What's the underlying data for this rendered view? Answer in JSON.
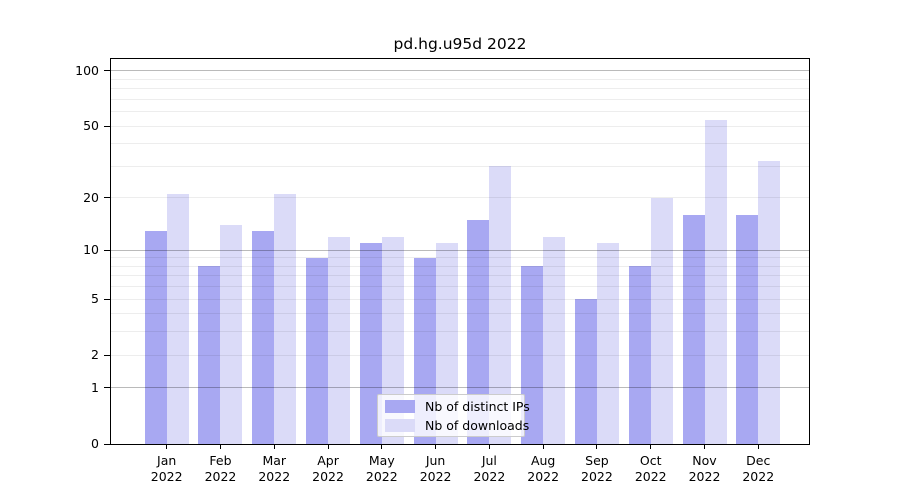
{
  "chart_data": {
    "type": "bar",
    "title": "pd.hg.u95d 2022",
    "x_months": [
      "Jan",
      "Feb",
      "Mar",
      "Apr",
      "May",
      "Jun",
      "Jul",
      "Aug",
      "Sep",
      "Oct",
      "Nov",
      "Dec"
    ],
    "x_year": "2022",
    "series": [
      {
        "name": "Nb of distinct IPs",
        "color": "#a8a8f2",
        "values": [
          13,
          8,
          13,
          9,
          11,
          9,
          15,
          8,
          5,
          8,
          16,
          16
        ]
      },
      {
        "name": "Nb of downloads",
        "color": "#dbdbf8",
        "values": [
          21,
          14,
          21,
          12,
          12,
          11,
          30,
          12,
          11,
          20,
          54,
          32
        ]
      }
    ],
    "y_scale": "log1p",
    "ylim": [
      0,
      116
    ],
    "y_ticks": [
      0,
      1,
      2,
      5,
      10,
      20,
      50,
      100
    ],
    "y_major_gridlines": [
      1,
      10,
      100
    ],
    "y_minor_gridlines": [
      2,
      3,
      4,
      5,
      6,
      7,
      8,
      9,
      20,
      30,
      40,
      50,
      60,
      70,
      80,
      90
    ],
    "grid": true,
    "legend_position": "lower center",
    "colors": {
      "axis": "#000000",
      "major_grid": "#bababa",
      "minor_grid": "#ededed",
      "background": "#ffffff"
    }
  }
}
